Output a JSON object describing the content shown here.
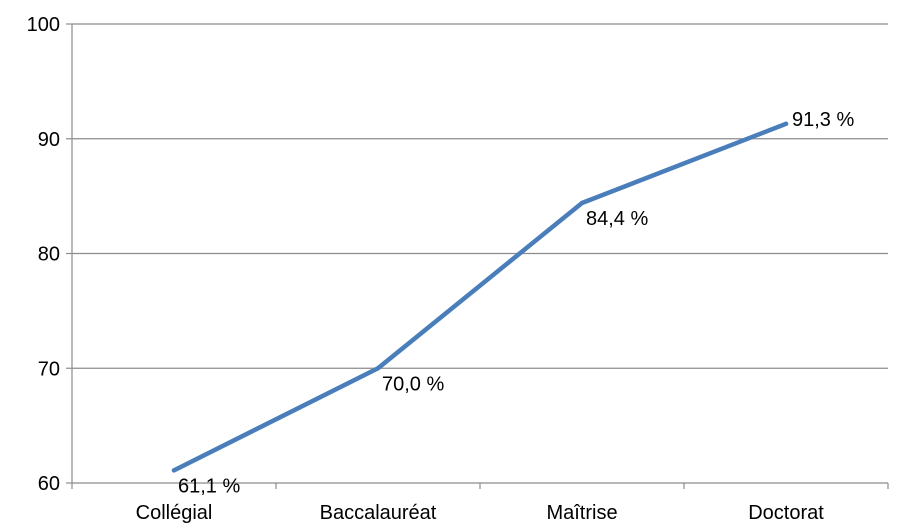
{
  "chart_data": {
    "type": "line",
    "title": "",
    "xlabel": "",
    "ylabel": "",
    "categories": [
      "Collégial",
      "Baccalauréat",
      "Maîtrise",
      "Doctorat"
    ],
    "series": [
      {
        "values": [
          61.1,
          70.0,
          84.4,
          91.3
        ],
        "data_labels": [
          "61,1 %",
          "70,0 %",
          "84,4 %",
          "91,3 %"
        ],
        "color": "#4a7ebb"
      }
    ],
    "ylim": [
      60,
      100
    ],
    "yticks": [
      "60",
      "70",
      "80",
      "90",
      "100"
    ],
    "grid": true,
    "legend": "none"
  }
}
